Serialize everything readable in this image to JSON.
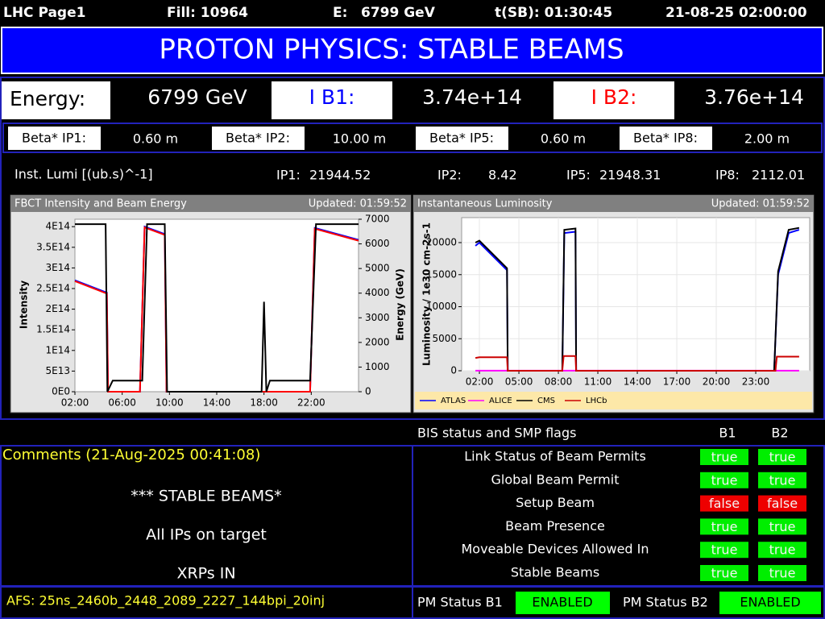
{
  "header": {
    "title": "LHC Page1",
    "fill": "Fill: 10964",
    "energy_label": "E:",
    "energy": "6799 GeV",
    "tsb": "t(SB): 01:30:45",
    "datetime": "21-08-25 02:00:00"
  },
  "banner": "PROTON PHYSICS: STABLE BEAMS",
  "beam_row": {
    "energy_label": "Energy:",
    "energy": "6799 GeV",
    "ib1_label": "I B1:",
    "ib1": "3.74e+14",
    "ib2_label": "I B2:",
    "ib2": "3.76e+14"
  },
  "beta": [
    {
      "label": "Beta* IP1:",
      "value": "0.60 m"
    },
    {
      "label": "Beta* IP2:",
      "value": "10.00 m"
    },
    {
      "label": "Beta* IP5:",
      "value": "0.60 m"
    },
    {
      "label": "Beta* IP8:",
      "value": "2.00 m"
    }
  ],
  "lumi": {
    "label": "Inst. Lumi [(ub.s)^-1]",
    "items": [
      {
        "name": "IP1:",
        "value": "21944.52"
      },
      {
        "name": "IP2:",
        "value": "8.42"
      },
      {
        "name": "IP5:",
        "value": "21948.31"
      },
      {
        "name": "IP8:",
        "value": "2112.01"
      }
    ]
  },
  "chart_data": [
    {
      "type": "line",
      "title": "FBCT Intensity and Beam Energy",
      "updated": "Updated: 01:59:52",
      "ylabel": "Intensity",
      "y2label": "Energy (GeV)",
      "xlim": [
        2,
        26
      ],
      "xticks": [
        {
          "value": 2,
          "label": "02:00"
        },
        {
          "value": 6,
          "label": "06:00"
        },
        {
          "value": 10,
          "label": "10:00"
        },
        {
          "value": 14,
          "label": "14:00"
        },
        {
          "value": 18,
          "label": "18:00"
        },
        {
          "value": 22,
          "label": "22:00"
        }
      ],
      "ylim": [
        0,
        418000000000000.0
      ],
      "yticks": [
        {
          "value": 0,
          "label": "0E0"
        },
        {
          "value": 50000000000000.0,
          "label": "5E13"
        },
        {
          "value": 100000000000000.0,
          "label": "1E14"
        },
        {
          "value": 150000000000000.0,
          "label": "1.5E14"
        },
        {
          "value": 200000000000000.0,
          "label": "2E14"
        },
        {
          "value": 250000000000000.0,
          "label": "2.5E14"
        },
        {
          "value": 300000000000000.0,
          "label": "3E14"
        },
        {
          "value": 350000000000000.0,
          "label": "3.5E14"
        },
        {
          "value": 400000000000000.0,
          "label": "4E14"
        }
      ],
      "y2lim": [
        0,
        7000
      ],
      "y2ticks": [
        0,
        1000,
        2000,
        3000,
        4000,
        5000,
        6000,
        7000
      ],
      "series": [
        {
          "color": "#0000ff",
          "x": [
            2,
            4.7,
            4.8,
            7.5,
            7.9,
            9.6,
            9.75,
            21.9,
            22.3,
            26
          ],
          "values": [
            270000000000000.0,
            240000000000000.0,
            0,
            0,
            400000000000000.0,
            382000000000000.0,
            0,
            0,
            397000000000000.0,
            368000000000000.0
          ]
        },
        {
          "color": "#ff0000",
          "x": [
            2,
            4.7,
            4.8,
            7.5,
            7.9,
            9.6,
            9.75,
            21.9,
            22.3,
            26
          ],
          "values": [
            268000000000000.0,
            238000000000000.0,
            0,
            0,
            398000000000000.0,
            380000000000000.0,
            0,
            0,
            395000000000000.0,
            366000000000000.0
          ]
        },
        {
          "color": "#000000",
          "axis": "y2",
          "x": [
            2,
            4.6,
            4.75,
            5.2,
            7.7,
            8.1,
            9.6,
            9.8,
            17.8,
            18.0,
            18.2,
            18.5,
            21.9,
            22.4,
            26
          ],
          "values": [
            6800,
            6800,
            0,
            450,
            450,
            6800,
            6800,
            0,
            0,
            3650,
            0,
            450,
            450,
            6800,
            6800
          ]
        }
      ]
    },
    {
      "type": "line",
      "title": "Instantaneous Luminosity",
      "updated": "Updated: 01:59:52",
      "ylabel": "Luminosity / 1e30 cm-2s-1",
      "xlim": [
        0.65,
        27.1
      ],
      "xticks": [
        {
          "value": 2,
          "label": "02:00"
        },
        {
          "value": 5,
          "label": "05:00"
        },
        {
          "value": 8,
          "label": "08:00"
        },
        {
          "value": 11,
          "label": "11:00"
        },
        {
          "value": 14,
          "label": "14:00"
        },
        {
          "value": 17,
          "label": "17:00"
        },
        {
          "value": 20,
          "label": "20:00"
        },
        {
          "value": 23,
          "label": "23:00"
        }
      ],
      "ylim": [
        0,
        23900
      ],
      "yticks": [
        0,
        5000,
        10000,
        15000,
        20000
      ],
      "grid": true,
      "legend": "bottom",
      "series": [
        {
          "name": "ATLAS",
          "color": "#0000ff",
          "x": [
            1.7,
            2.0,
            4.1,
            4.15,
            8.3,
            8.45,
            9.3,
            9.35,
            24.4,
            24.7,
            25.5,
            26.3
          ],
          "values": [
            19500,
            20000,
            15700,
            0,
            0,
            21500,
            21700,
            0,
            0,
            15000,
            21500,
            22000
          ]
        },
        {
          "name": "ALICE",
          "color": "#ff00ff",
          "x": [
            1.7,
            26.3
          ],
          "values": [
            8,
            8
          ]
        },
        {
          "name": "CMS",
          "color": "#000000",
          "x": [
            1.7,
            2.0,
            4.1,
            4.15,
            8.3,
            8.45,
            9.3,
            9.35,
            24.4,
            24.7,
            25.5,
            26.3
          ],
          "values": [
            20000,
            20300,
            16000,
            0,
            0,
            22000,
            22200,
            0,
            0,
            15500,
            22000,
            22300
          ]
        },
        {
          "name": "LHCb",
          "color": "#cc0000",
          "x": [
            1.7,
            2.0,
            4.1,
            4.15,
            8.3,
            8.4,
            9.3,
            9.35,
            24.5,
            24.6,
            26.3
          ],
          "values": [
            2000,
            2100,
            2100,
            0,
            0,
            2300,
            2300,
            0,
            0,
            2200,
            2200
          ]
        }
      ]
    }
  ],
  "bis": {
    "title": "BIS status and SMP flags",
    "columns": [
      "B1",
      "B2"
    ],
    "rows": [
      {
        "label": "Link Status of Beam Permits",
        "b1": "true",
        "b2": "true"
      },
      {
        "label": "Global Beam Permit",
        "b1": "true",
        "b2": "true"
      },
      {
        "label": "Setup Beam",
        "b1": "false",
        "b2": "false"
      },
      {
        "label": "Beam Presence",
        "b1": "true",
        "b2": "true"
      },
      {
        "label": "Moveable Devices Allowed In",
        "b1": "true",
        "b2": "true"
      },
      {
        "label": "Stable Beams",
        "b1": "true",
        "b2": "true"
      }
    ]
  },
  "comments": {
    "title": "Comments (21-Aug-2025 00:41:08)",
    "lines": [
      "*** STABLE BEAMS*",
      "All IPs on target",
      "XRPs IN"
    ]
  },
  "footer": {
    "afs": "AFS: 25ns_2460b_2448_2089_2227_144bpi_20inj",
    "pm_b1_label": "PM Status B1",
    "pm_b1": "ENABLED",
    "pm_b2_label": "PM Status B2",
    "pm_b2": "ENABLED"
  }
}
